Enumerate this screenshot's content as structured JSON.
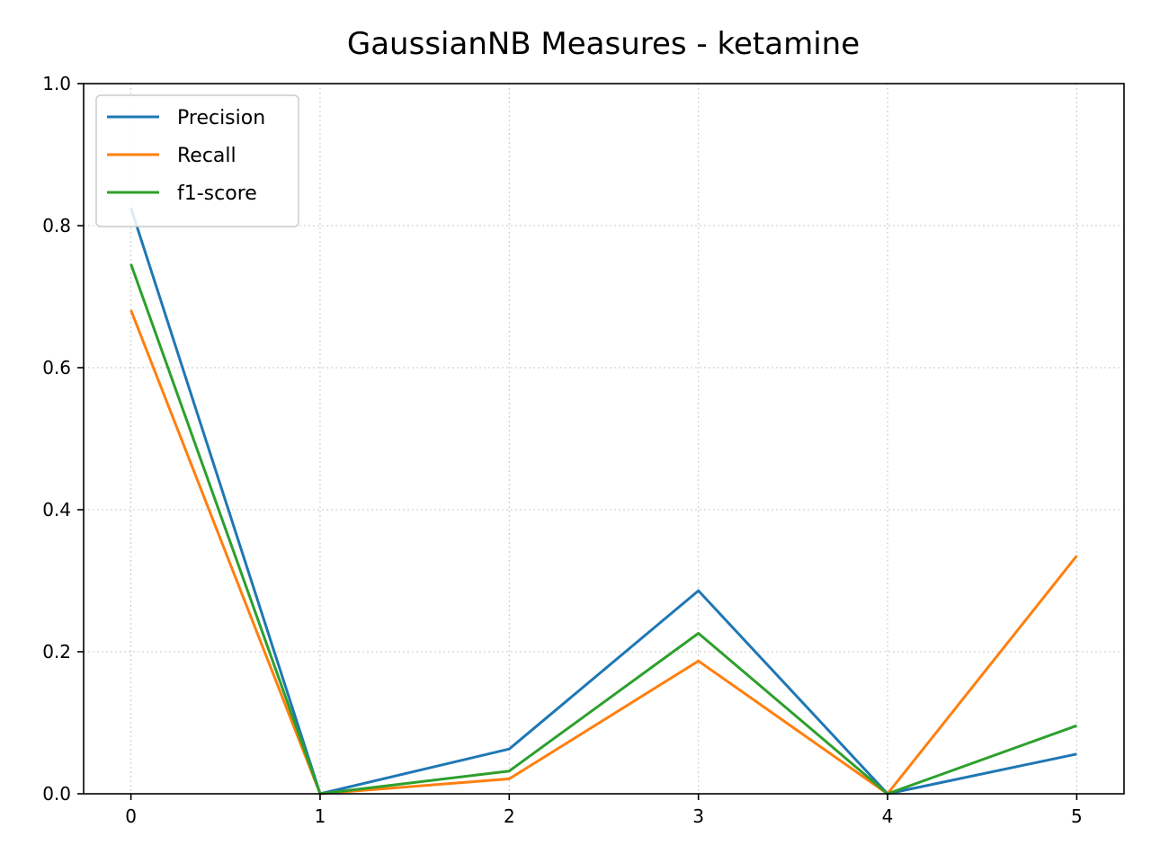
{
  "chart_data": {
    "type": "line",
    "title": "GaussianNB Measures - ketamine",
    "xlabel": "",
    "ylabel": "",
    "x": [
      0,
      1,
      2,
      3,
      4,
      5
    ],
    "xlim": [
      -0.25,
      5.25
    ],
    "ylim": [
      0.0,
      1.0
    ],
    "xticks": [
      "0",
      "1",
      "2",
      "3",
      "4",
      "5"
    ],
    "yticks": [
      "0.0",
      "0.2",
      "0.4",
      "0.6",
      "0.8",
      "1.0"
    ],
    "grid": true,
    "legend_position": "top-left",
    "series": [
      {
        "name": "Precision",
        "color": "#1f77b4",
        "values": [
          0.825,
          0.0,
          0.063,
          0.286,
          0.0,
          0.056
        ]
      },
      {
        "name": "Recall",
        "color": "#ff7f0e",
        "values": [
          0.681,
          0.0,
          0.021,
          0.187,
          0.0,
          0.335
        ]
      },
      {
        "name": "f1-score",
        "color": "#2ca02c",
        "values": [
          0.746,
          0.0,
          0.032,
          0.226,
          0.0,
          0.096
        ]
      }
    ]
  }
}
